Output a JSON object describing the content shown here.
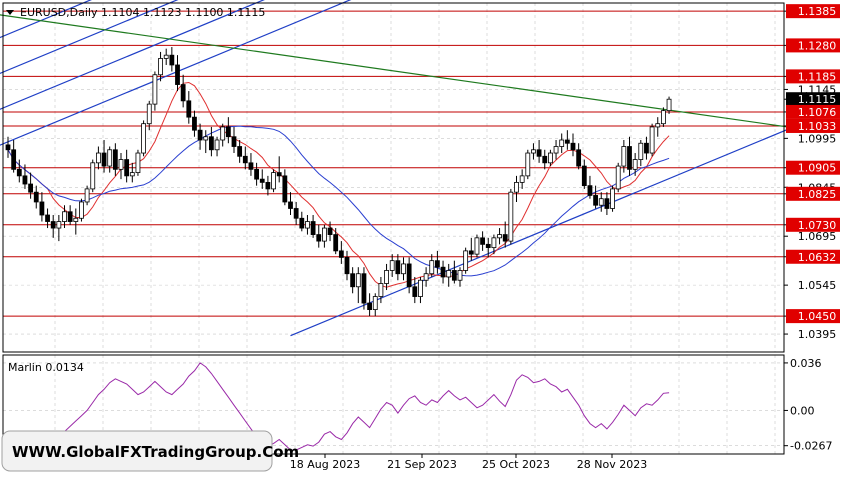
{
  "header": {
    "symbol_line": "EURUSD,Daily  1.1104  1.1123  1.1100  1.1115"
  },
  "watermark": "WWW.GlobalFXTradingGroup.Com",
  "colors": {
    "background": "#ffffff",
    "grid": "#c8c8c8",
    "level_line": "#c00000",
    "level_label_bg": "#e00000",
    "current_label_bg": "#000000",
    "channel": "#1f3fc6",
    "trend_green": "#1e7a1e",
    "ma_red": "#e03030",
    "ma_blue": "#2a3fd0",
    "oscillator": "#9a2aa8",
    "candle": "#000000"
  },
  "chart_data": [
    {
      "type": "candlestick",
      "title": "EURUSD,Daily",
      "ohlc_last": {
        "open": 1.1104,
        "high": 1.1123,
        "low": 1.11,
        "close": 1.1115
      },
      "ylim": [
        1.034,
        1.141
      ],
      "y_ticks": [
        "1.1385",
        "1.1280",
        "1.1185",
        "1.1145",
        "1.1115",
        "1.1076",
        "1.1033",
        "1.0995",
        "1.0905",
        "1.0845",
        "1.0825",
        "1.0730",
        "1.0695",
        "1.0632",
        "1.0545",
        "1.0450",
        "1.0395"
      ],
      "levels": [
        "1.1385",
        "1.1280",
        "1.1185",
        "1.1076",
        "1.1033",
        "1.0905",
        "1.0825",
        "1.0730",
        "1.0632",
        "1.0450"
      ],
      "current_price": "1.1115",
      "x_labels": [
        "18 Aug 2023",
        "21 Sep 2023",
        "25 Oct 2023",
        "28 Nov 2023"
      ],
      "candles": [
        [
          1.0975,
          1.1,
          1.0935,
          1.096
        ],
        [
          1.096,
          1.099,
          1.089,
          1.09
        ],
        [
          1.09,
          1.093,
          1.086,
          1.088
        ],
        [
          1.088,
          1.0915,
          1.084,
          1.0855
        ],
        [
          1.0855,
          1.089,
          1.081,
          1.083
        ],
        [
          1.083,
          1.085,
          1.078,
          1.08
        ],
        [
          1.08,
          1.083,
          1.074,
          1.076
        ],
        [
          1.076,
          1.078,
          1.072,
          1.074
        ],
        [
          1.074,
          1.076,
          1.069,
          1.072
        ],
        [
          1.072,
          1.076,
          1.068,
          1.074
        ],
        [
          1.074,
          1.079,
          1.072,
          1.077
        ],
        [
          1.077,
          1.079,
          1.073,
          1.074
        ],
        [
          1.074,
          1.078,
          1.07,
          1.075
        ],
        [
          1.075,
          1.081,
          1.074,
          1.08
        ],
        [
          1.08,
          1.085,
          1.079,
          1.084
        ],
        [
          1.084,
          1.093,
          1.083,
          1.092
        ],
        [
          1.092,
          1.097,
          1.09,
          1.095
        ],
        [
          1.095,
          1.099,
          1.089,
          1.091
        ],
        [
          1.091,
          1.097,
          1.089,
          1.096
        ],
        [
          1.096,
          1.098,
          1.088,
          1.09
        ],
        [
          1.09,
          1.095,
          1.087,
          1.093
        ],
        [
          1.093,
          1.096,
          1.086,
          1.088
        ],
        [
          1.088,
          1.092,
          1.086,
          1.089
        ],
        [
          1.089,
          1.096,
          1.088,
          1.095
        ],
        [
          1.095,
          1.105,
          1.094,
          1.104
        ],
        [
          1.104,
          1.111,
          1.102,
          1.11
        ],
        [
          1.11,
          1.12,
          1.108,
          1.119
        ],
        [
          1.119,
          1.126,
          1.117,
          1.124
        ],
        [
          1.124,
          1.127,
          1.122,
          1.125
        ],
        [
          1.125,
          1.1275,
          1.12,
          1.122
        ],
        [
          1.122,
          1.125,
          1.114,
          1.116
        ],
        [
          1.116,
          1.119,
          1.109,
          1.111
        ],
        [
          1.111,
          1.114,
          1.104,
          1.106
        ],
        [
          1.106,
          1.108,
          1.1,
          1.102
        ],
        [
          1.102,
          1.104,
          1.096,
          1.099
        ],
        [
          1.099,
          1.102,
          1.095,
          1.1
        ],
        [
          1.1,
          1.103,
          1.094,
          1.096
        ],
        [
          1.096,
          1.1,
          1.094,
          1.099
        ],
        [
          1.099,
          1.104,
          1.097,
          1.103
        ],
        [
          1.103,
          1.106,
          1.098,
          1.1
        ],
        [
          1.1,
          1.103,
          1.095,
          1.097
        ],
        [
          1.097,
          1.099,
          1.092,
          1.094
        ],
        [
          1.094,
          1.097,
          1.09,
          1.092
        ],
        [
          1.092,
          1.095,
          1.088,
          1.09
        ],
        [
          1.09,
          1.092,
          1.085,
          1.087
        ],
        [
          1.087,
          1.09,
          1.084,
          1.086
        ],
        [
          1.086,
          1.088,
          1.082,
          1.084
        ],
        [
          1.084,
          1.09,
          1.083,
          1.089
        ],
        [
          1.089,
          1.094,
          1.086,
          1.088
        ],
        [
          1.088,
          1.09,
          1.079,
          1.08
        ],
        [
          1.08,
          1.083,
          1.076,
          1.078
        ],
        [
          1.078,
          1.08,
          1.073,
          1.075
        ],
        [
          1.075,
          1.077,
          1.071,
          1.072
        ],
        [
          1.072,
          1.076,
          1.07,
          1.074
        ],
        [
          1.074,
          1.076,
          1.069,
          1.07
        ],
        [
          1.07,
          1.073,
          1.066,
          1.068
        ],
        [
          1.068,
          1.073,
          1.066,
          1.072
        ],
        [
          1.072,
          1.074,
          1.068,
          1.07
        ],
        [
          1.07,
          1.072,
          1.064,
          1.065
        ],
        [
          1.065,
          1.068,
          1.061,
          1.063
        ],
        [
          1.063,
          1.065,
          1.056,
          1.058
        ],
        [
          1.058,
          1.06,
          1.052,
          1.054
        ],
        [
          1.054,
          1.06,
          1.049,
          1.058
        ],
        [
          1.058,
          1.06,
          1.047,
          1.049
        ],
        [
          1.049,
          1.052,
          1.045,
          1.047
        ],
        [
          1.047,
          1.052,
          1.045,
          1.051
        ],
        [
          1.051,
          1.057,
          1.049,
          1.055
        ],
        [
          1.055,
          1.061,
          1.053,
          1.059
        ],
        [
          1.059,
          1.064,
          1.057,
          1.062
        ],
        [
          1.062,
          1.064,
          1.056,
          1.058
        ],
        [
          1.058,
          1.063,
          1.056,
          1.061
        ],
        [
          1.061,
          1.063,
          1.052,
          1.054
        ],
        [
          1.054,
          1.057,
          1.049,
          1.051
        ],
        [
          1.051,
          1.057,
          1.049,
          1.056
        ],
        [
          1.056,
          1.06,
          1.054,
          1.058
        ],
        [
          1.058,
          1.064,
          1.057,
          1.062
        ],
        [
          1.062,
          1.065,
          1.058,
          1.06
        ],
        [
          1.06,
          1.062,
          1.055,
          1.057
        ],
        [
          1.057,
          1.061,
          1.054,
          1.059
        ],
        [
          1.059,
          1.062,
          1.055,
          1.056
        ],
        [
          1.056,
          1.06,
          1.054,
          1.059
        ],
        [
          1.059,
          1.066,
          1.058,
          1.065
        ],
        [
          1.065,
          1.069,
          1.062,
          1.064
        ],
        [
          1.064,
          1.07,
          1.063,
          1.069
        ],
        [
          1.069,
          1.071,
          1.065,
          1.067
        ],
        [
          1.067,
          1.069,
          1.063,
          1.066
        ],
        [
          1.066,
          1.07,
          1.064,
          1.069
        ],
        [
          1.069,
          1.072,
          1.067,
          1.07
        ],
        [
          1.07,
          1.074,
          1.066,
          1.068
        ],
        [
          1.068,
          1.084,
          1.067,
          1.083
        ],
        [
          1.083,
          1.088,
          1.08,
          1.086
        ],
        [
          1.086,
          1.09,
          1.084,
          1.088
        ],
        [
          1.088,
          1.096,
          1.087,
          1.095
        ],
        [
          1.095,
          1.098,
          1.093,
          1.096
        ],
        [
          1.096,
          1.099,
          1.092,
          1.094
        ],
        [
          1.094,
          1.096,
          1.09,
          1.092
        ],
        [
          1.092,
          1.096,
          1.091,
          1.095
        ],
        [
          1.095,
          1.099,
          1.093,
          1.097
        ],
        [
          1.097,
          1.101,
          1.095,
          1.099
        ],
        [
          1.099,
          1.102,
          1.096,
          1.098
        ],
        [
          1.098,
          1.101,
          1.094,
          1.096
        ],
        [
          1.096,
          1.098,
          1.09,
          1.091
        ],
        [
          1.091,
          1.093,
          1.084,
          1.085
        ],
        [
          1.085,
          1.088,
          1.081,
          1.082
        ],
        [
          1.082,
          1.085,
          1.078,
          1.079
        ],
        [
          1.079,
          1.083,
          1.077,
          1.081
        ],
        [
          1.081,
          1.083,
          1.076,
          1.078
        ],
        [
          1.078,
          1.085,
          1.077,
          1.084
        ],
        [
          1.084,
          1.092,
          1.083,
          1.091
        ],
        [
          1.091,
          1.099,
          1.089,
          1.097
        ],
        [
          1.097,
          1.1,
          1.088,
          1.09
        ],
        [
          1.09,
          1.095,
          1.088,
          1.093
        ],
        [
          1.093,
          1.099,
          1.091,
          1.098
        ],
        [
          1.098,
          1.1,
          1.093,
          1.095
        ],
        [
          1.095,
          1.104,
          1.094,
          1.103
        ],
        [
          1.103,
          1.106,
          1.1,
          1.104
        ],
        [
          1.104,
          1.109,
          1.103,
          1.108
        ],
        [
          1.108,
          1.1123,
          1.107,
          1.1115
        ]
      ]
    },
    {
      "type": "line",
      "title": "Marlin 0.0134",
      "ylim": [
        -0.033,
        0.042
      ],
      "y_ticks": [
        "0.036",
        "0.00",
        "-0.0267"
      ],
      "values": [
        -0.02,
        -0.024,
        -0.028,
        -0.031,
        -0.03,
        -0.028,
        -0.025,
        -0.021,
        -0.018,
        -0.019,
        -0.016,
        -0.012,
        -0.008,
        -0.004,
        0.0,
        0.006,
        0.012,
        0.016,
        0.021,
        0.024,
        0.022,
        0.02,
        0.016,
        0.012,
        0.014,
        0.018,
        0.022,
        0.018,
        0.014,
        0.012,
        0.016,
        0.02,
        0.026,
        0.03,
        0.036,
        0.033,
        0.028,
        0.022,
        0.016,
        0.01,
        0.004,
        -0.002,
        -0.008,
        -0.014,
        -0.02,
        -0.024,
        -0.027,
        -0.025,
        -0.022,
        -0.026,
        -0.03,
        -0.03,
        -0.028,
        -0.026,
        -0.027,
        -0.024,
        -0.018,
        -0.016,
        -0.02,
        -0.022,
        -0.017,
        -0.01,
        -0.005,
        -0.009,
        -0.013,
        -0.006,
        0.001,
        0.006,
        0.004,
        -0.002,
        0.004,
        0.009,
        0.011,
        0.006,
        0.004,
        0.008,
        0.006,
        0.011,
        0.015,
        0.011,
        0.008,
        0.01,
        0.006,
        0.002,
        0.004,
        0.008,
        0.012,
        0.007,
        0.003,
        0.012,
        0.023,
        0.027,
        0.025,
        0.021,
        0.022,
        0.024,
        0.02,
        0.018,
        0.014,
        0.016,
        0.01,
        0.004,
        -0.004,
        -0.01,
        -0.013,
        -0.01,
        -0.014,
        -0.009,
        -0.003,
        0.004,
        0.0,
        -0.004,
        0.002,
        0.005,
        0.004,
        0.008,
        0.013,
        0.0134
      ]
    }
  ]
}
